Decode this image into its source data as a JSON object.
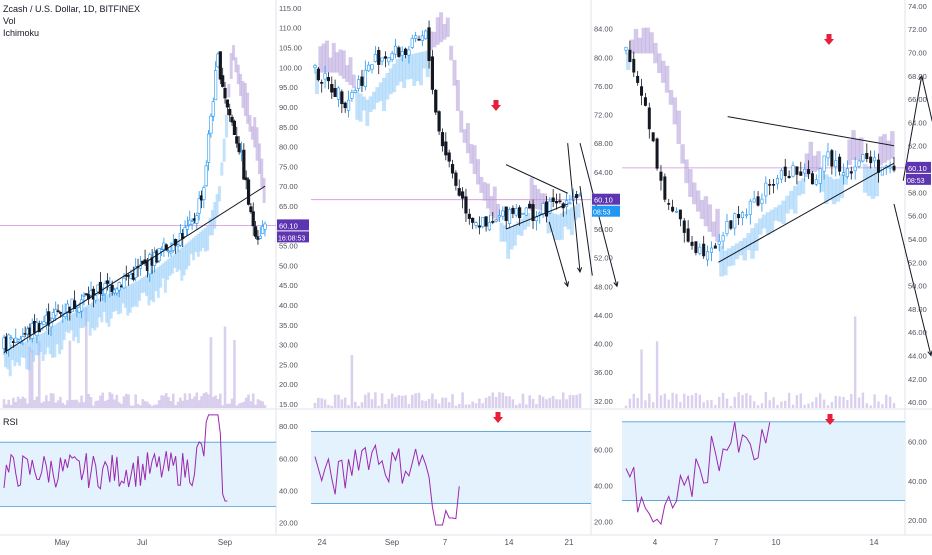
{
  "header": {
    "symbol": "Zcash / U.S. Dollar, 1D, BITFINEX",
    "indicator_vol": "Vol",
    "indicator_ichimoku": "Ichimoku",
    "rsi_label": "RSI"
  },
  "colors": {
    "up_candle": "#2196f3",
    "down_candle": "#131722",
    "cloud_bull": "#90caf9",
    "cloud_bear": "#b39ddb",
    "volume": "#d1c4e9",
    "rsi_line": "#9c27b0",
    "rsi_band_fill": "#e3f2fd",
    "rsi_band_line": "#4a9fd8",
    "arrow_marker": "#e91e3a",
    "price_badge": "#5e35b1",
    "price_badge_alt": "#2196f3",
    "last_price_line": "#ce93d8"
  },
  "chart_data": [
    {
      "type": "candlestick",
      "panel": "left",
      "ylim": [
        14,
        117
      ],
      "y_ticks": [
        "15.00",
        "20.00",
        "25.00",
        "30.00",
        "35.00",
        "40.00",
        "45.00",
        "50.00",
        "55.00",
        "60.00",
        "65.00",
        "70.00",
        "75.00",
        "80.00",
        "85.00",
        "90.00",
        "95.00",
        "100.00",
        "105.00",
        "110.00",
        "115.00"
      ],
      "x_ticks": [
        "May",
        "Jul",
        "Sep"
      ],
      "last_price": "60.10",
      "countdown": "16:08:53",
      "approx_close_path": [
        [
          0,
          30
        ],
        [
          10,
          33
        ],
        [
          20,
          37
        ],
        [
          35,
          42
        ],
        [
          50,
          46
        ],
        [
          60,
          50
        ],
        [
          70,
          55
        ],
        [
          80,
          60
        ],
        [
          85,
          70
        ],
        [
          88,
          88
        ],
        [
          91,
          102
        ],
        [
          95,
          90
        ],
        [
          100,
          80
        ],
        [
          103,
          70
        ],
        [
          105,
          62
        ],
        [
          108,
          58
        ],
        [
          111,
          60
        ]
      ],
      "trendline": [
        [
          0,
          28
        ],
        [
          111,
          70
        ]
      ],
      "rsi": {
        "ylim": [
          13,
          90
        ],
        "band": [
          30,
          70
        ],
        "ticks": [
          "20.00",
          "40.00",
          "60.00",
          "80.00"
        ]
      }
    },
    {
      "type": "candlestick",
      "panel": "middle",
      "ylim": [
        31,
        88
      ],
      "y_ticks": [
        "32.00",
        "36.00",
        "40.00",
        "44.00",
        "48.00",
        "52.00",
        "56.00",
        "60.00",
        "64.00",
        "68.00",
        "72.00",
        "76.00",
        "80.00",
        "84.00"
      ],
      "x_ticks": [
        "24",
        "Sep",
        "7",
        "14",
        "21"
      ],
      "last_price": "60.10",
      "countdown": "08:53",
      "approx_close_path": [
        [
          0,
          78
        ],
        [
          5,
          74
        ],
        [
          10,
          80
        ],
        [
          15,
          81
        ],
        [
          18,
          83
        ],
        [
          20,
          70
        ],
        [
          23,
          62
        ],
        [
          25,
          58
        ],
        [
          28,
          56
        ],
        [
          32,
          59
        ],
        [
          36,
          58
        ],
        [
          40,
          60
        ],
        [
          43,
          61
        ]
      ],
      "triangle": [
        [
          [
            31,
            65
          ],
          [
            41,
            61
          ]
        ],
        [
          [
            31,
            56
          ],
          [
            41,
            59.5
          ]
        ]
      ],
      "projection": [
        [
          [
            41,
            68
          ],
          [
            43,
            50
          ]
        ],
        [
          [
            43,
            68
          ],
          [
            49,
            48
          ]
        ],
        [
          [
            38,
            57
          ],
          [
            41,
            48
          ]
        ]
      ],
      "rsi": {
        "ylim": [
          13,
          82
        ],
        "band": [
          30,
          70
        ],
        "ticks": [
          "20.00",
          "40.00",
          "60.00",
          "80.00"
        ]
      }
    },
    {
      "type": "candlestick",
      "panel": "right",
      "ylim": [
        39.5,
        74.5
      ],
      "y_ticks": [
        "40.00",
        "42.00",
        "44.00",
        "46.00",
        "48.00",
        "50.00",
        "52.00",
        "54.00",
        "56.00",
        "58.00",
        "60.00",
        "62.00",
        "64.00",
        "66.00",
        "68.00",
        "70.00",
        "72.00",
        "74.00"
      ],
      "x_ticks": [
        "4",
        "7",
        "10",
        "14"
      ],
      "last_price": "60.10",
      "countdown": "08:53",
      "approx_close_path": [
        [
          0,
          70
        ],
        [
          2,
          66
        ],
        [
          3,
          62
        ],
        [
          4,
          58
        ],
        [
          6,
          55
        ],
        [
          8,
          53
        ],
        [
          10,
          54
        ],
        [
          12,
          56
        ],
        [
          14,
          57
        ],
        [
          16,
          59
        ],
        [
          18,
          60
        ],
        [
          20,
          59
        ],
        [
          22,
          61
        ],
        [
          24,
          60
        ],
        [
          26,
          61
        ],
        [
          28,
          60
        ],
        [
          29,
          59.5
        ]
      ],
      "triangle": [
        [
          [
            11,
            64.5
          ],
          [
            29,
            62
          ]
        ],
        [
          [
            10,
            52
          ],
          [
            29,
            60.5
          ]
        ]
      ],
      "projection": [
        [
          [
            30,
            59
          ],
          [
            32,
            68
          ]
        ],
        [
          [
            32,
            68
          ],
          [
            39,
            44
          ]
        ],
        [
          [
            29,
            57
          ],
          [
            33,
            44
          ]
        ]
      ],
      "rsi": {
        "ylim": [
          13,
          76
        ],
        "band": [
          30,
          70
        ],
        "ticks": [
          "20.00",
          "40.00",
          "60.00"
        ]
      }
    }
  ]
}
